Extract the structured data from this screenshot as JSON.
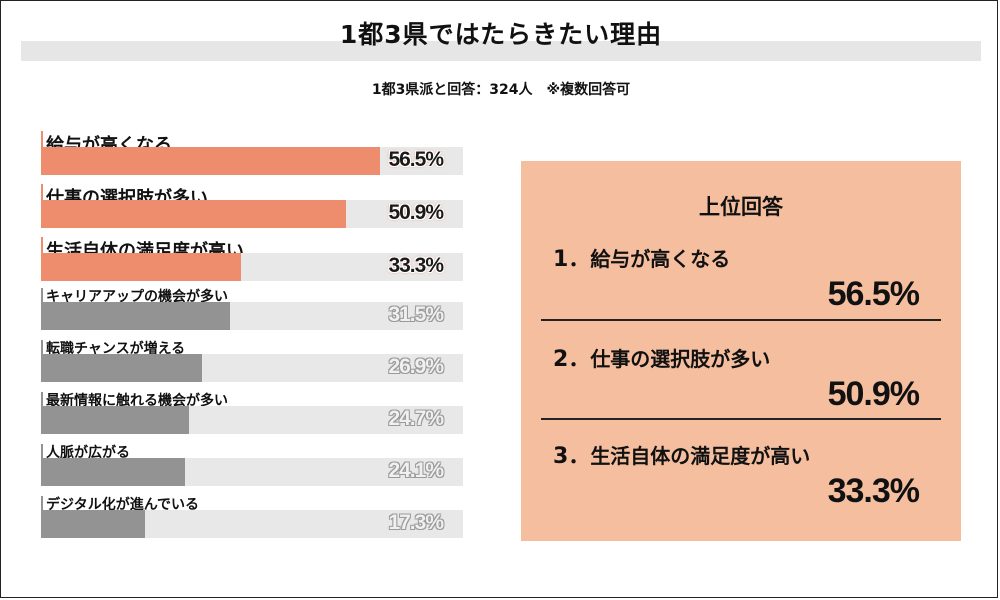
{
  "title": "1都3県ではたらきたい理由",
  "subtitle": "1都3県派と回答：324人　※複数回答可",
  "colors": {
    "highlight": "#ee8c6e",
    "normal": "#939393",
    "track": "#e8e8e8",
    "panel": "#f4be9f"
  },
  "chart_data": {
    "type": "bar",
    "orientation": "horizontal",
    "title": "1都3県ではたらきたい理由",
    "subtitle": "1都3県派と回答：324人　※複数回答可",
    "unit": "%",
    "xlim": [
      0,
      100
    ],
    "categories": [
      "給与が高くなる",
      "仕事の選択肢が多い",
      "生活自体の満足度が高い",
      "キャリアアップの機会が多い",
      "転職チャンスが増える",
      "最新情報に触れる機会が多い",
      "人脈が広がる",
      "デジタル化が進んでいる"
    ],
    "values": [
      56.5,
      50.9,
      33.3,
      31.5,
      26.9,
      24.7,
      24.1,
      17.3
    ],
    "value_labels": [
      "56.5%",
      "50.9%",
      "33.3%",
      "31.5%",
      "26.9%",
      "24.7%",
      "24.1%",
      "17.3%"
    ],
    "highlighted_top": 3
  },
  "panel": {
    "title": "上位回答",
    "items": [
      {
        "rank": "1．",
        "label": "給与が高くなる",
        "value": "56.5%"
      },
      {
        "rank": "2．",
        "label": "仕事の選択肢が多い",
        "value": "50.9%"
      },
      {
        "rank": "3．",
        "label": "生活自体の満足度が高い",
        "value": "33.3%"
      }
    ]
  }
}
